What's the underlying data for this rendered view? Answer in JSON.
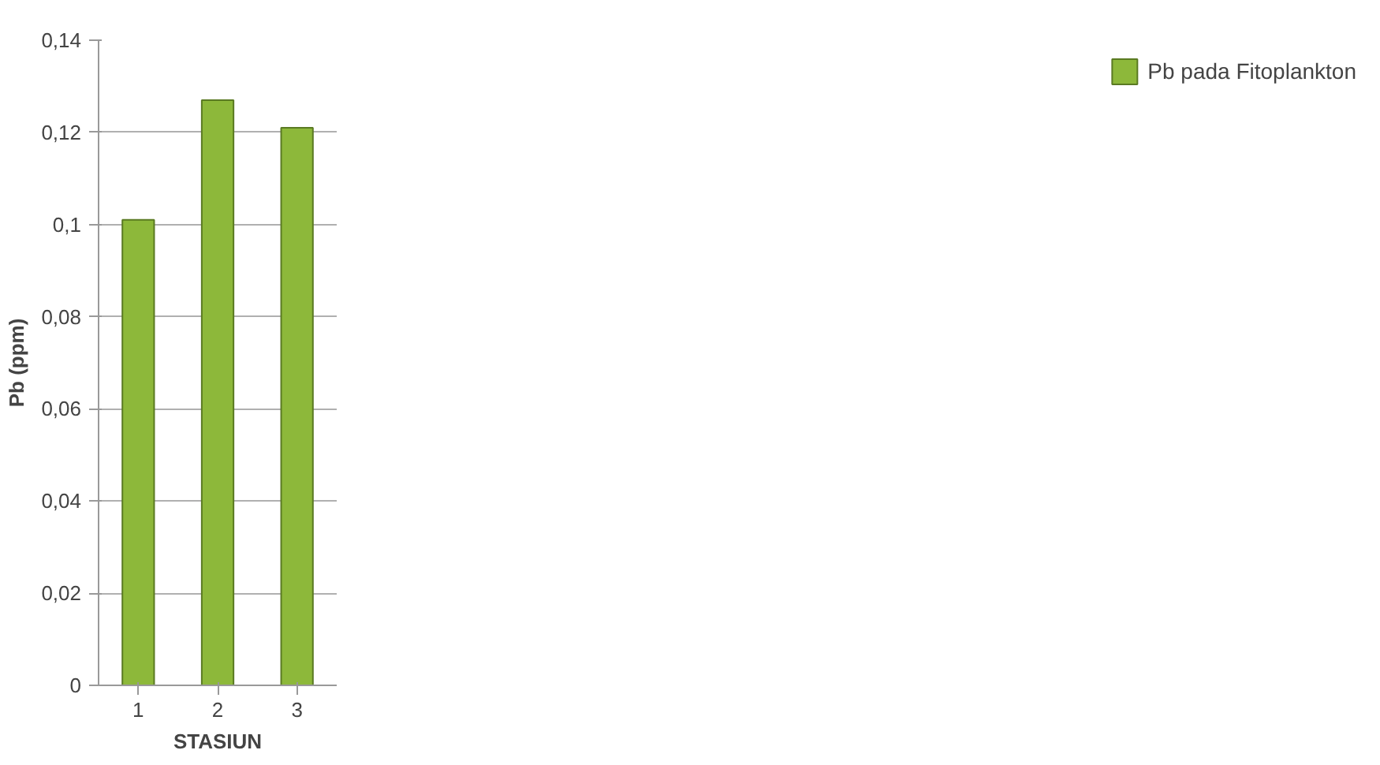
{
  "chart_data": {
    "type": "bar",
    "xlabel": "STASIUN",
    "ylabel": "Pb (ppm)",
    "categories": [
      "1",
      "2",
      "3"
    ],
    "series": [
      {
        "name": "Pb pada Fitoplankton",
        "color": "#8db83a",
        "values": [
          0.101,
          0.127,
          0.121
        ]
      }
    ],
    "ylim": [
      0,
      0.14
    ],
    "yticks": [
      0,
      {
        "value": 0.02,
        "label": "0,02"
      },
      {
        "value": 0.04,
        "label": "0,04"
      },
      {
        "value": 0.06,
        "label": "0,06"
      },
      {
        "value": 0.08,
        "label": "0,08"
      },
      {
        "value": 0.1,
        "label": "0,1"
      },
      {
        "value": 0.12,
        "label": "0,12"
      },
      {
        "value": 0.14,
        "label": "0,14"
      }
    ],
    "grid": "y",
    "legend": "right"
  }
}
